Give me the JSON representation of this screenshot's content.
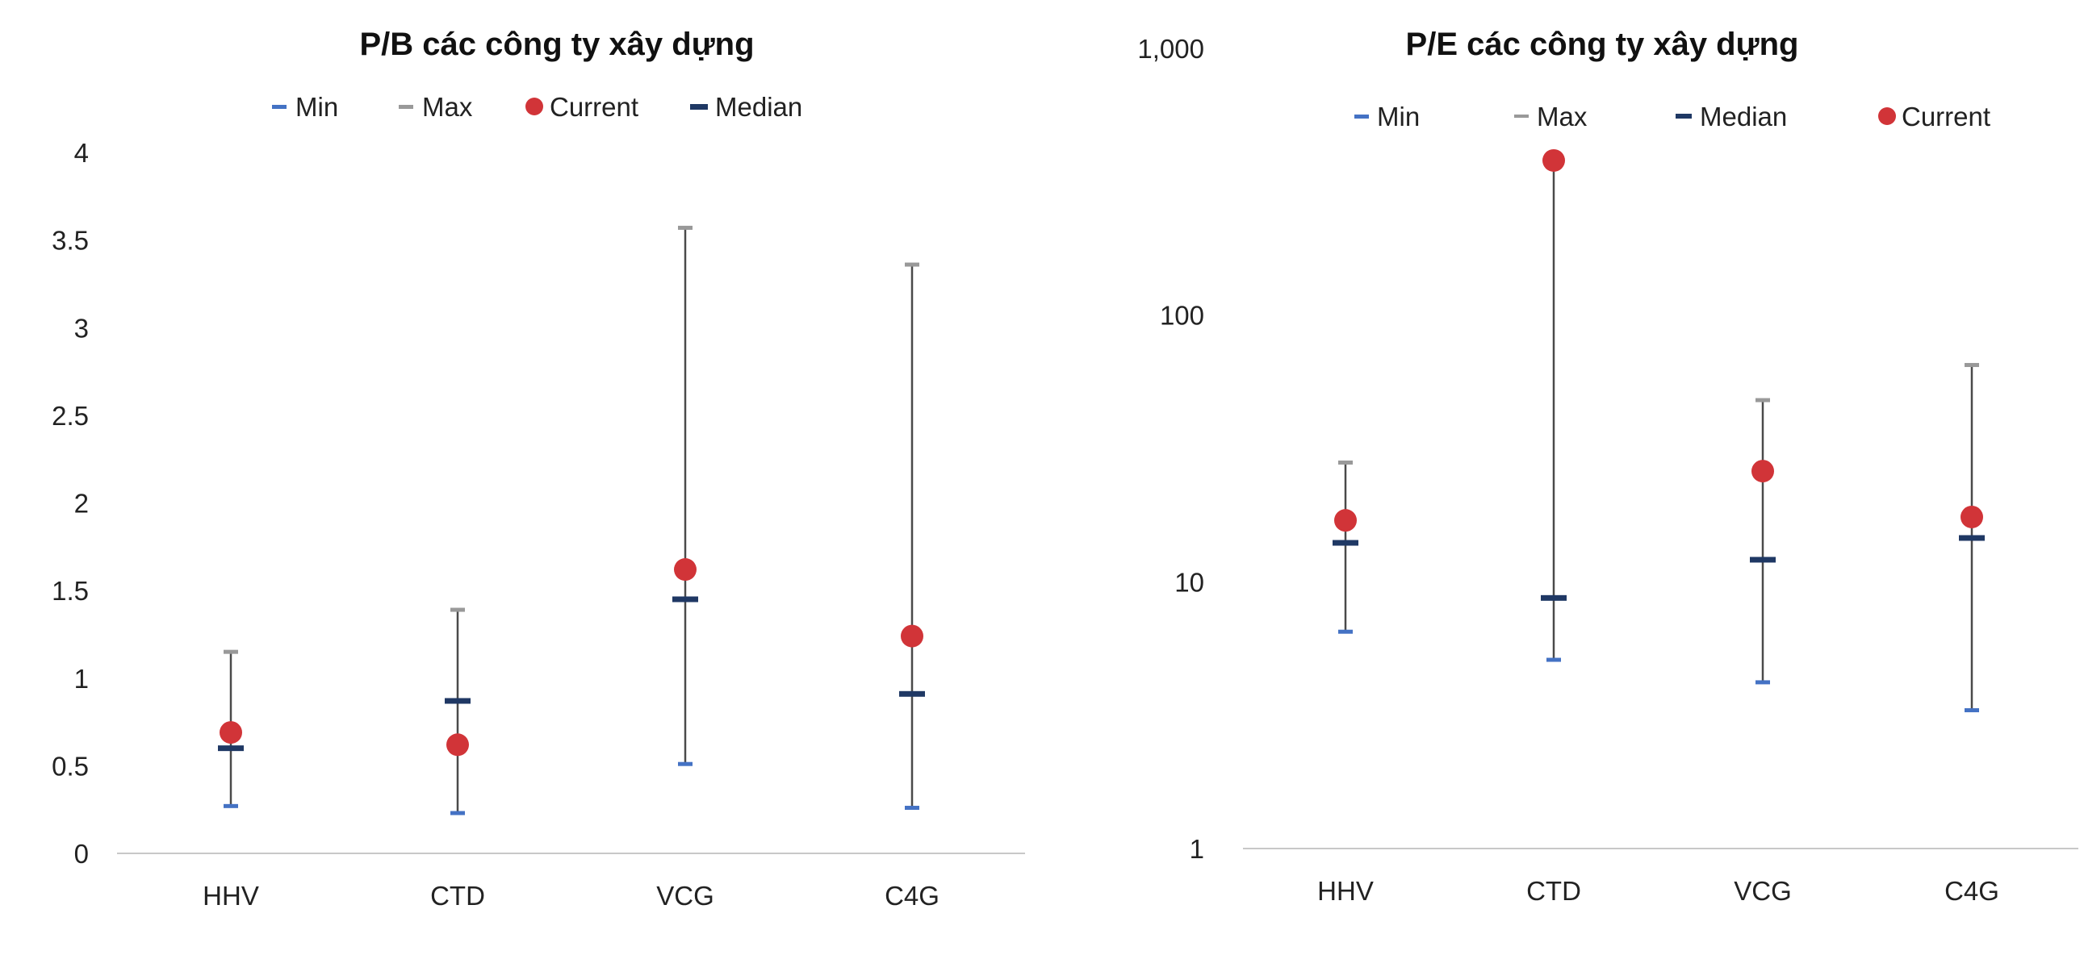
{
  "charts": [
    {
      "type": "scatter",
      "title": "P/B các công ty xây dựng",
      "categories": [
        "HHV",
        "CTD",
        "VCG",
        "C4G"
      ],
      "y_scale": "linear",
      "ylim": [
        0,
        4
      ],
      "yticks": [
        "0",
        "0.5",
        "1",
        "1.5",
        "2",
        "2.5",
        "3",
        "3.5",
        "4"
      ],
      "legend": [
        {
          "key": "min",
          "label": "Min"
        },
        {
          "key": "max",
          "label": "Max"
        },
        {
          "key": "current",
          "label": "Current"
        },
        {
          "key": "median",
          "label": "Median"
        }
      ],
      "series": [
        {
          "key": "min",
          "name": "Min",
          "values": [
            0.27,
            0.23,
            0.51,
            0.26
          ]
        },
        {
          "key": "max",
          "name": "Max",
          "values": [
            1.15,
            1.39,
            3.57,
            3.36
          ]
        },
        {
          "key": "median",
          "name": "Median",
          "values": [
            0.6,
            0.87,
            1.45,
            0.91
          ]
        },
        {
          "key": "current",
          "name": "Current",
          "values": [
            0.69,
            0.62,
            1.62,
            1.24
          ]
        }
      ],
      "legend_position": "top"
    },
    {
      "type": "scatter",
      "title": "P/E các công ty xây dựng",
      "categories": [
        "HHV",
        "CTD",
        "VCG",
        "C4G"
      ],
      "y_scale": "log",
      "ylim": [
        1,
        1000
      ],
      "yticks": [
        "1",
        "10",
        "100",
        "1,000"
      ],
      "legend": [
        {
          "key": "min",
          "label": "Min"
        },
        {
          "key": "max",
          "label": "Max"
        },
        {
          "key": "median",
          "label": "Median"
        },
        {
          "key": "current",
          "label": "Current"
        }
      ],
      "series": [
        {
          "key": "min",
          "name": "Min",
          "values": [
            6.5,
            5.1,
            4.2,
            3.3
          ]
        },
        {
          "key": "max",
          "name": "Max",
          "values": [
            28,
            380,
            48,
            65
          ]
        },
        {
          "key": "median",
          "name": "Median",
          "values": [
            14,
            8.7,
            12.1,
            14.6
          ]
        },
        {
          "key": "current",
          "name": "Current",
          "values": [
            17,
            380,
            26,
            17.5
          ]
        }
      ],
      "legend_position": "top"
    }
  ],
  "colors": {
    "min": "#4472c4",
    "max": "#999999",
    "median": "#1f3864",
    "current": "#d13438",
    "whisker": "#4a4a4a",
    "axis": "#c8c8c8"
  }
}
